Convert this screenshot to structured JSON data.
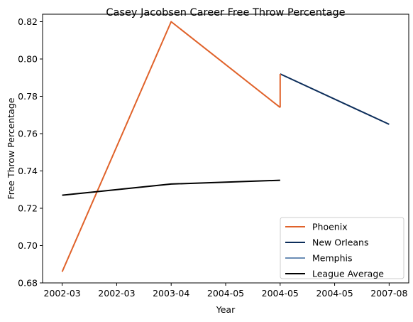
{
  "chart_data": {
    "type": "line",
    "title": "Casey Jacobsen Career Free Throw Percentage",
    "xlabel": "Year",
    "ylabel": "Free Throw Percentage",
    "x_tick_labels": [
      "2002-03",
      "2002-03",
      "2003-04",
      "2004-05",
      "2004-05",
      "2004-05",
      "2007-08"
    ],
    "x_tick_positions": [
      0,
      0.5,
      1,
      1.5,
      2,
      2.5,
      3
    ],
    "xlim": [
      -0.18,
      3.18
    ],
    "ylim": [
      0.68,
      0.824
    ],
    "y_ticks": [
      0.68,
      0.7,
      0.72,
      0.74,
      0.76,
      0.78,
      0.8,
      0.82
    ],
    "y_tick_labels": [
      "0.68",
      "0.70",
      "0.72",
      "0.74",
      "0.76",
      "0.78",
      "0.80",
      "0.82"
    ],
    "grid": false,
    "legend_position": "bottom-right",
    "series": [
      {
        "name": "Phoenix",
        "color": "#e0622a",
        "points": [
          [
            0,
            0.686
          ],
          [
            1,
            0.82
          ],
          [
            2,
            0.774
          ]
        ]
      },
      {
        "name": "New Orleans",
        "color": "#0c2d5a",
        "points": [
          [
            2,
            0.792
          ],
          [
            3,
            0.765
          ]
        ]
      },
      {
        "name": "Memphis",
        "color": "#6a8db5",
        "points": []
      },
      {
        "name": "League Average",
        "color": "#000000",
        "points": [
          [
            0,
            0.727
          ],
          [
            1,
            0.733
          ],
          [
            2,
            0.735
          ]
        ]
      }
    ],
    "connector": {
      "color": "#e0622a",
      "points": [
        [
          2,
          0.774
        ],
        [
          2,
          0.792
        ]
      ]
    }
  }
}
